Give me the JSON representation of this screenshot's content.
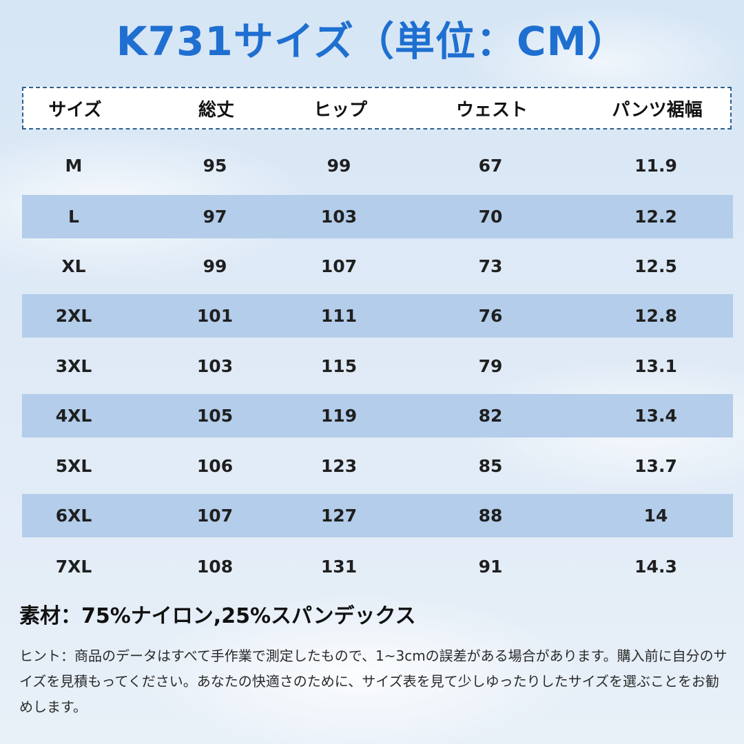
{
  "title": "K731サイズ（単位：CM）",
  "table": {
    "headers": [
      "サイズ",
      "総丈",
      "ヒップ",
      "ウェスト",
      "パンツ裾幅"
    ],
    "rows": [
      [
        "M",
        "95",
        "99",
        "67",
        "11.9"
      ],
      [
        "L",
        "97",
        "103",
        "70",
        "12.2"
      ],
      [
        "XL",
        "99",
        "107",
        "73",
        "12.5"
      ],
      [
        "2XL",
        "101",
        "111",
        "76",
        "12.8"
      ],
      [
        "3XL",
        "103",
        "115",
        "79",
        "13.1"
      ],
      [
        "4XL",
        "105",
        "119",
        "82",
        "13.4"
      ],
      [
        "5XL",
        "106",
        "123",
        "85",
        "13.7"
      ],
      [
        "6XL",
        "107",
        "127",
        "88",
        "14"
      ],
      [
        "7XL",
        "108",
        "131",
        "91",
        "14.3"
      ]
    ]
  },
  "material": "素材：75%ナイロン,25%スパンデックス",
  "hint": "ヒント：商品のデータはすべて手作業で測定したもので、1~3cmの誤差がある場合があります。購入前に自分のサイズを見積もってください。あなたの快適さのために、サイズ表を見て少しゆったりしたサイズを選ぶことをお勧めします。",
  "colors": {
    "title": "#1f6fd1",
    "band": "#b3cdea",
    "header_border": "#2d5f8d"
  }
}
